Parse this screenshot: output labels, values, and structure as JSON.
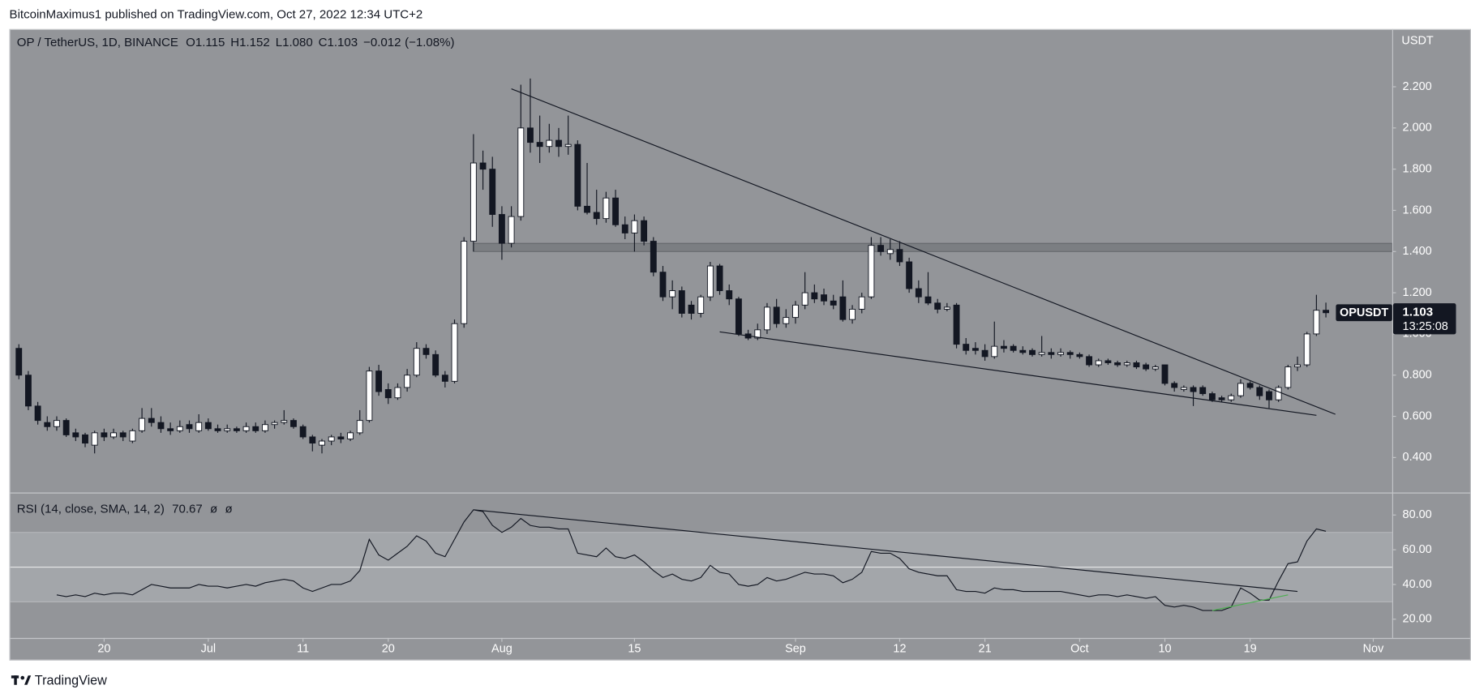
{
  "header": {
    "published": "BitcoinMaximus1 published on TradingView.com, Oct 27, 2022 12:34 UTC+2"
  },
  "footer": {
    "brand": "TradingView"
  },
  "chart_data": {
    "type": "candlestick",
    "symbol_title": "OP / TetherUS, 1D, BINANCE",
    "ohlc_legend": [
      {
        "key": "O",
        "label": "1.115"
      },
      {
        "key": "H",
        "label": "1.152"
      },
      {
        "key": "L",
        "label": "1.080"
      },
      {
        "key": "C",
        "label": "1.103"
      }
    ],
    "change": "−0.012",
    "change_percent": "(−1.08%)",
    "y_axis_label": "USDT",
    "price_tag": {
      "symbol": "OPUSDT",
      "countdown": "13:25:08"
    },
    "up_color": "#ffffff",
    "down_color": "#131722",
    "wick_color": "#131722",
    "background": "#939599",
    "x": [
      "2022-06-11",
      "2022-06-12",
      "2022-06-13",
      "2022-06-14",
      "2022-06-15",
      "2022-06-16",
      "2022-06-17",
      "2022-06-18",
      "2022-06-19",
      "2022-06-20",
      "2022-06-21",
      "2022-06-22",
      "2022-06-23",
      "2022-06-24",
      "2022-06-25",
      "2022-06-26",
      "2022-06-27",
      "2022-06-28",
      "2022-06-29",
      "2022-06-30",
      "2022-07-01",
      "2022-07-02",
      "2022-07-03",
      "2022-07-04",
      "2022-07-05",
      "2022-07-06",
      "2022-07-07",
      "2022-07-08",
      "2022-07-09",
      "2022-07-10",
      "2022-07-11",
      "2022-07-12",
      "2022-07-13",
      "2022-07-14",
      "2022-07-15",
      "2022-07-16",
      "2022-07-17",
      "2022-07-18",
      "2022-07-19",
      "2022-07-20",
      "2022-07-21",
      "2022-07-22",
      "2022-07-23",
      "2022-07-24",
      "2022-07-25",
      "2022-07-26",
      "2022-07-27",
      "2022-07-28",
      "2022-07-29",
      "2022-07-30",
      "2022-07-31",
      "2022-08-01",
      "2022-08-02",
      "2022-08-03",
      "2022-08-04",
      "2022-08-05",
      "2022-08-06",
      "2022-08-07",
      "2022-08-08",
      "2022-08-09",
      "2022-08-10",
      "2022-08-11",
      "2022-08-12",
      "2022-08-13",
      "2022-08-14",
      "2022-08-15",
      "2022-08-16",
      "2022-08-17",
      "2022-08-18",
      "2022-08-19",
      "2022-08-20",
      "2022-08-21",
      "2022-08-22",
      "2022-08-23",
      "2022-08-24",
      "2022-08-25",
      "2022-08-26",
      "2022-08-27",
      "2022-08-28",
      "2022-08-29",
      "2022-08-30",
      "2022-08-31",
      "2022-09-01",
      "2022-09-02",
      "2022-09-03",
      "2022-09-04",
      "2022-09-05",
      "2022-09-06",
      "2022-09-07",
      "2022-09-08",
      "2022-09-09",
      "2022-09-10",
      "2022-09-11",
      "2022-09-12",
      "2022-09-13",
      "2022-09-14",
      "2022-09-15",
      "2022-09-16",
      "2022-09-17",
      "2022-09-18",
      "2022-09-19",
      "2022-09-20",
      "2022-09-21",
      "2022-09-22",
      "2022-09-23",
      "2022-09-24",
      "2022-09-25",
      "2022-09-26",
      "2022-09-27",
      "2022-09-28",
      "2022-09-29",
      "2022-09-30",
      "2022-10-01",
      "2022-10-02",
      "2022-10-03",
      "2022-10-04",
      "2022-10-05",
      "2022-10-06",
      "2022-10-07",
      "2022-10-08",
      "2022-10-09",
      "2022-10-10",
      "2022-10-11",
      "2022-10-12",
      "2022-10-13",
      "2022-10-14",
      "2022-10-15",
      "2022-10-16",
      "2022-10-17",
      "2022-10-18",
      "2022-10-19",
      "2022-10-20",
      "2022-10-21",
      "2022-10-22",
      "2022-10-23",
      "2022-10-24",
      "2022-10-25",
      "2022-10-26",
      "2022-10-27"
    ],
    "open": [
      0.93,
      0.8,
      0.65,
      0.57,
      0.55,
      0.58,
      0.52,
      0.51,
      0.46,
      0.52,
      0.5,
      0.52,
      0.48,
      0.53,
      0.59,
      0.57,
      0.54,
      0.53,
      0.56,
      0.53,
      0.57,
      0.54,
      0.53,
      0.54,
      0.53,
      0.55,
      0.53,
      0.56,
      0.57,
      0.58,
      0.55,
      0.5,
      0.46,
      0.48,
      0.5,
      0.49,
      0.52,
      0.58,
      0.82,
      0.73,
      0.69,
      0.74,
      0.8,
      0.93,
      0.9,
      0.8,
      0.77,
      1.05,
      1.45,
      1.83,
      1.8,
      1.58,
      1.44,
      1.57,
      2.0,
      1.93,
      1.91,
      1.94,
      1.91,
      1.92,
      1.62,
      1.59,
      1.56,
      1.66,
      1.53,
      1.49,
      1.55,
      1.45,
      1.3,
      1.18,
      1.21,
      1.14,
      1.1,
      1.18,
      1.33,
      1.21,
      1.17,
      1.0,
      0.98,
      1.02,
      1.13,
      1.05,
      1.08,
      1.14,
      1.2,
      1.19,
      1.16,
      1.18,
      1.07,
      1.12,
      1.18,
      1.43,
      1.39,
      1.41,
      1.35,
      1.22,
      1.18,
      1.15,
      1.12,
      1.14,
      0.95,
      0.93,
      0.92,
      0.89,
      0.94,
      0.94,
      0.92,
      0.92,
      0.9,
      0.91,
      0.9,
      0.91,
      0.9,
      0.89,
      0.85,
      0.87,
      0.86,
      0.85,
      0.86,
      0.85,
      0.83,
      0.85,
      0.76,
      0.73,
      0.74,
      0.74,
      0.71,
      0.69,
      0.68,
      0.7,
      0.76,
      0.74,
      0.72,
      0.68,
      0.74,
      0.84,
      0.85,
      1.0,
      1.115
    ],
    "high": [
      0.95,
      0.82,
      0.67,
      0.6,
      0.6,
      0.59,
      0.54,
      0.52,
      0.53,
      0.54,
      0.54,
      0.53,
      0.54,
      0.64,
      0.64,
      0.6,
      0.57,
      0.58,
      0.58,
      0.61,
      0.59,
      0.56,
      0.56,
      0.55,
      0.57,
      0.57,
      0.58,
      0.58,
      0.63,
      0.59,
      0.56,
      0.51,
      0.49,
      0.51,
      0.52,
      0.53,
      0.63,
      0.84,
      0.85,
      0.76,
      0.76,
      0.83,
      0.96,
      0.95,
      0.92,
      0.82,
      1.07,
      1.47,
      1.97,
      1.89,
      1.86,
      1.62,
      1.62,
      2.21,
      2.24,
      2.06,
      2.02,
      2.0,
      2.06,
      1.94,
      1.83,
      1.7,
      1.69,
      1.7,
      1.57,
      1.58,
      1.57,
      1.47,
      1.33,
      1.26,
      1.23,
      1.16,
      1.19,
      1.35,
      1.34,
      1.24,
      1.18,
      1.02,
      1.05,
      1.15,
      1.17,
      1.12,
      1.16,
      1.3,
      1.24,
      1.22,
      1.19,
      1.26,
      1.14,
      1.2,
      1.47,
      1.47,
      1.46,
      1.45,
      1.37,
      1.26,
      1.3,
      1.17,
      1.15,
      1.15,
      0.98,
      0.96,
      0.95,
      1.06,
      0.97,
      0.95,
      0.94,
      0.93,
      0.99,
      0.93,
      0.93,
      0.92,
      0.91,
      0.9,
      0.88,
      0.88,
      0.87,
      0.87,
      0.87,
      0.86,
      0.85,
      0.85,
      0.77,
      0.75,
      0.75,
      0.75,
      0.72,
      0.7,
      0.71,
      0.78,
      0.77,
      0.75,
      0.73,
      0.75,
      0.85,
      0.89,
      1.01,
      1.19,
      1.152
    ],
    "low": [
      0.78,
      0.63,
      0.56,
      0.53,
      0.53,
      0.5,
      0.48,
      0.45,
      0.42,
      0.48,
      0.49,
      0.48,
      0.47,
      0.52,
      0.55,
      0.52,
      0.51,
      0.52,
      0.52,
      0.52,
      0.53,
      0.52,
      0.52,
      0.52,
      0.52,
      0.52,
      0.52,
      0.54,
      0.56,
      0.54,
      0.49,
      0.43,
      0.42,
      0.46,
      0.47,
      0.48,
      0.51,
      0.57,
      0.7,
      0.66,
      0.68,
      0.72,
      0.79,
      0.88,
      0.79,
      0.74,
      0.76,
      1.03,
      1.4,
      1.7,
      1.52,
      1.36,
      1.42,
      1.55,
      1.88,
      1.83,
      1.88,
      1.86,
      1.87,
      1.6,
      1.58,
      1.53,
      1.54,
      1.52,
      1.46,
      1.4,
      1.43,
      1.28,
      1.16,
      1.12,
      1.08,
      1.07,
      1.08,
      1.16,
      1.19,
      1.14,
      0.99,
      0.97,
      0.97,
      1.0,
      1.03,
      1.03,
      1.05,
      1.12,
      1.15,
      1.14,
      1.12,
      1.06,
      1.05,
      1.1,
      1.17,
      1.38,
      1.36,
      1.33,
      1.2,
      1.15,
      1.14,
      1.1,
      1.11,
      0.93,
      0.9,
      0.9,
      0.87,
      0.88,
      0.91,
      0.91,
      0.9,
      0.89,
      0.89,
      0.88,
      0.89,
      0.88,
      0.88,
      0.84,
      0.84,
      0.85,
      0.84,
      0.84,
      0.83,
      0.82,
      0.82,
      0.75,
      0.72,
      0.72,
      0.65,
      0.7,
      0.67,
      0.67,
      0.67,
      0.69,
      0.73,
      0.68,
      0.64,
      0.67,
      0.73,
      0.82,
      0.84,
      0.99,
      1.08
    ],
    "close": [
      0.8,
      0.65,
      0.58,
      0.55,
      0.58,
      0.51,
      0.5,
      0.47,
      0.52,
      0.5,
      0.52,
      0.5,
      0.53,
      0.59,
      0.57,
      0.54,
      0.53,
      0.55,
      0.54,
      0.57,
      0.54,
      0.53,
      0.54,
      0.53,
      0.55,
      0.53,
      0.56,
      0.57,
      0.58,
      0.55,
      0.5,
      0.47,
      0.48,
      0.5,
      0.49,
      0.52,
      0.58,
      0.82,
      0.72,
      0.69,
      0.74,
      0.8,
      0.93,
      0.9,
      0.8,
      0.77,
      1.05,
      1.45,
      1.83,
      1.8,
      1.58,
      1.44,
      1.57,
      2.0,
      1.93,
      1.91,
      1.94,
      1.91,
      1.92,
      1.62,
      1.59,
      1.56,
      1.66,
      1.53,
      1.49,
      1.55,
      1.45,
      1.3,
      1.18,
      1.21,
      1.1,
      1.1,
      1.18,
      1.33,
      1.21,
      1.17,
      1.0,
      0.98,
      1.02,
      1.13,
      1.05,
      1.08,
      1.14,
      1.2,
      1.17,
      1.16,
      1.14,
      1.07,
      1.12,
      1.18,
      1.43,
      1.4,
      1.41,
      1.35,
      1.22,
      1.18,
      1.15,
      1.12,
      1.13,
      0.95,
      0.92,
      0.92,
      0.89,
      0.94,
      0.93,
      0.92,
      0.91,
      0.9,
      0.91,
      0.9,
      0.91,
      0.9,
      0.89,
      0.85,
      0.87,
      0.86,
      0.85,
      0.86,
      0.84,
      0.83,
      0.84,
      0.76,
      0.74,
      0.74,
      0.72,
      0.71,
      0.68,
      0.68,
      0.7,
      0.76,
      0.74,
      0.7,
      0.68,
      0.74,
      0.84,
      0.85,
      1.0,
      1.115,
      1.103
    ],
    "xlim": [
      "2022-06-10",
      "2022-11-03"
    ],
    "xticks": [
      {
        "value": "2022-06-20",
        "label": "20"
      },
      {
        "value": "2022-07-01",
        "label": "Jul"
      },
      {
        "value": "2022-07-11",
        "label": "11"
      },
      {
        "value": "2022-07-20",
        "label": "20"
      },
      {
        "value": "2022-08-01",
        "label": "Aug"
      },
      {
        "value": "2022-08-15",
        "label": "15"
      },
      {
        "value": "2022-09-01",
        "label": "Sep"
      },
      {
        "value": "2022-09-12",
        "label": "12"
      },
      {
        "value": "2022-09-21",
        "label": "21"
      },
      {
        "value": "2022-10-01",
        "label": "Oct"
      },
      {
        "value": "2022-10-10",
        "label": "10"
      },
      {
        "value": "2022-10-19",
        "label": "19"
      },
      {
        "value": "2022-11-01",
        "label": "Nov"
      }
    ],
    "ylim": [
      0.23,
      2.48
    ],
    "yticks": [
      {
        "value": 0.4,
        "label": "0.400"
      },
      {
        "value": 0.6,
        "label": "0.600"
      },
      {
        "value": 0.8,
        "label": "0.800"
      },
      {
        "value": 1.0,
        "label": "1.000"
      },
      {
        "value": 1.2,
        "label": "1.200"
      },
      {
        "value": 1.4,
        "label": "1.400"
      },
      {
        "value": 1.6,
        "label": "1.600"
      },
      {
        "value": 1.8,
        "label": "1.800"
      },
      {
        "value": 2.0,
        "label": "2.000"
      },
      {
        "value": 2.2,
        "label": "2.200"
      }
    ],
    "zone": {
      "x_start": "2022-07-29",
      "y": [
        1.4,
        1.44
      ]
    },
    "trendlines": [
      {
        "x": [
          "2022-08-02",
          "2022-10-28"
        ],
        "y": [
          2.19,
          0.61
        ]
      },
      {
        "x": [
          "2022-08-24",
          "2022-10-26"
        ],
        "y": [
          1.01,
          0.605
        ]
      }
    ],
    "rsi": {
      "name": "RSI (14, close, SMA, 14, 2)",
      "na_labels": [
        "ø",
        "ø"
      ],
      "color": "#131722",
      "values": [
        null,
        null,
        null,
        null,
        34,
        33,
        34,
        33,
        35,
        34,
        35,
        35,
        34,
        37,
        40,
        39,
        38,
        38,
        38,
        40,
        39,
        39,
        38,
        39,
        40,
        39,
        41,
        42,
        43,
        42,
        38,
        36,
        38,
        40,
        40,
        42,
        48,
        66,
        57,
        54,
        58,
        62,
        68,
        65,
        58,
        56,
        66,
        76,
        83,
        82,
        74,
        70,
        73,
        78,
        74,
        73,
        73,
        72,
        72,
        58,
        57,
        56,
        61,
        56,
        55,
        57,
        53,
        48,
        44,
        46,
        43,
        42,
        44,
        51,
        47,
        46,
        40,
        39,
        40,
        44,
        42,
        43,
        45,
        47,
        46,
        46,
        45,
        41,
        43,
        47,
        59,
        58,
        58,
        55,
        49,
        47,
        46,
        45,
        45,
        37,
        36,
        36,
        35,
        38,
        37,
        37,
        36,
        36,
        36,
        36,
        36,
        35,
        34,
        33,
        34,
        34,
        33,
        34,
        33,
        32,
        33,
        28,
        27,
        28,
        27,
        25,
        25,
        25,
        27,
        38,
        35,
        31,
        31,
        42,
        52,
        53,
        65,
        72,
        70.67
      ],
      "ylim": [
        9.2,
        92.4
      ],
      "yticks": [
        {
          "value": 20,
          "label": "20.00"
        },
        {
          "value": 40,
          "label": "40.00"
        },
        {
          "value": 60,
          "label": "60.00"
        },
        {
          "value": 80,
          "label": "80.00"
        }
      ],
      "bands": [
        30,
        70
      ],
      "band_color": "#a3a6aa",
      "midline": 50,
      "trendlines": [
        {
          "x": [
            "2022-07-29",
            "2022-10-24"
          ],
          "y": [
            83,
            36
          ],
          "color": "#131722"
        },
        {
          "x": [
            "2022-10-15",
            "2022-10-23"
          ],
          "y": [
            25,
            34
          ],
          "color": "#4caf50"
        }
      ]
    }
  }
}
